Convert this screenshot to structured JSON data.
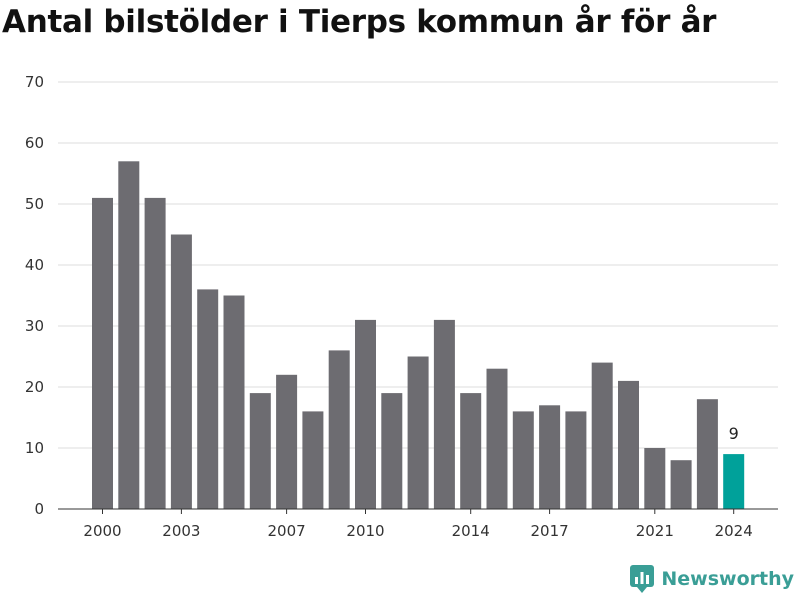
{
  "chart_data": {
    "type": "bar",
    "title": "Antal bilstölder i Tierps kommun år för år",
    "categories": [
      2000,
      2001,
      2002,
      2003,
      2004,
      2005,
      2006,
      2007,
      2008,
      2009,
      2010,
      2011,
      2012,
      2013,
      2014,
      2015,
      2016,
      2017,
      2018,
      2019,
      2020,
      2021,
      2022,
      2023,
      2024
    ],
    "values": [
      51,
      57,
      51,
      45,
      36,
      35,
      19,
      22,
      16,
      26,
      31,
      19,
      25,
      31,
      19,
      23,
      16,
      17,
      16,
      24,
      21,
      10,
      8,
      18,
      9
    ],
    "x_tick_labels": [
      "2000",
      "2003",
      "2007",
      "2010",
      "2014",
      "2017",
      "2021",
      "2024"
    ],
    "y_ticks": [
      0,
      10,
      20,
      30,
      40,
      50,
      60,
      70
    ],
    "ylim": [
      0,
      70
    ],
    "grid": true,
    "highlight": {
      "category": 2024,
      "label": "9",
      "color": "#00a19a"
    },
    "bar_color": "#6d6c71",
    "xlabel": "",
    "ylabel": ""
  },
  "brand": {
    "name": "Newsworthy",
    "color": "#3a9e96",
    "icon": "bar-chart-logo-icon"
  }
}
